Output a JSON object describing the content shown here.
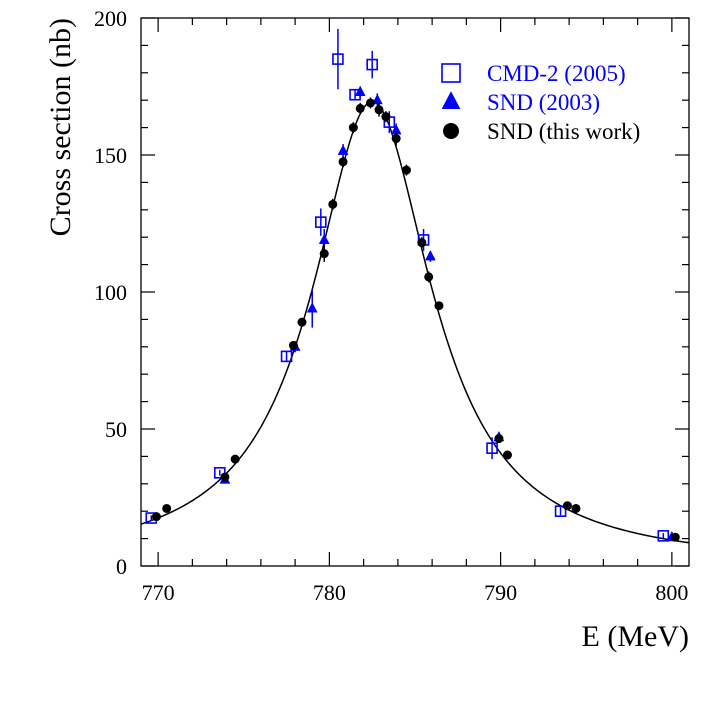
{
  "chart_data": {
    "type": "scatter",
    "title": "",
    "xlabel": "E (MeV)",
    "ylabel": "Cross section (nb)",
    "xlim": [
      769,
      801
    ],
    "ylim": [
      0,
      200
    ],
    "x_ticks": [
      770,
      780,
      790,
      800
    ],
    "y_ticks": [
      0,
      50,
      100,
      150,
      200
    ],
    "grid": false,
    "legend_position": "top-right",
    "series": [
      {
        "name": "CMD-2 (2005)",
        "marker": "open-square",
        "color": "#0000ff",
        "label_color": "#0000ff",
        "points": [
          {
            "x": 769.6,
            "y": 17.5,
            "err": 1.0
          },
          {
            "x": 773.6,
            "y": 34.0,
            "err": 1.0
          },
          {
            "x": 777.5,
            "y": 76.5,
            "err": 2.0
          },
          {
            "x": 779.5,
            "y": 125.5,
            "err": 5.0
          },
          {
            "x": 780.5,
            "y": 185.0,
            "err": 11.0
          },
          {
            "x": 781.5,
            "y": 172.0,
            "err": 2.0
          },
          {
            "x": 782.5,
            "y": 183.0,
            "err": 5.0
          },
          {
            "x": 783.5,
            "y": 162.0,
            "err": 4.0
          },
          {
            "x": 785.5,
            "y": 119.0,
            "err": 4.0
          },
          {
            "x": 789.5,
            "y": 43.0,
            "err": 4.0
          },
          {
            "x": 793.5,
            "y": 20.0,
            "err": 1.5
          },
          {
            "x": 799.5,
            "y": 11.0,
            "err": 1.0
          }
        ]
      },
      {
        "name": "SND (2003)",
        "marker": "filled-triangle",
        "color": "#0000ff",
        "label_color": "#0000ff",
        "points": [
          {
            "x": 773.9,
            "y": 31.5,
            "err": 1.0
          },
          {
            "x": 778.0,
            "y": 80.0,
            "err": 2.0
          },
          {
            "x": 779.0,
            "y": 94.0,
            "err": 7.0
          },
          {
            "x": 779.7,
            "y": 119.0,
            "err": 4.0
          },
          {
            "x": 780.8,
            "y": 151.5,
            "err": 2.5
          },
          {
            "x": 781.8,
            "y": 173.0,
            "err": 2.0
          },
          {
            "x": 782.8,
            "y": 170.0,
            "err": 2.5
          },
          {
            "x": 783.9,
            "y": 159.0,
            "err": 2.5
          },
          {
            "x": 785.9,
            "y": 113.0,
            "err": 2.0
          },
          {
            "x": 789.9,
            "y": 47.0,
            "err": 1.5
          },
          {
            "x": 800.0,
            "y": 10.5,
            "err": 1.0
          }
        ]
      },
      {
        "name": "SND (this work)",
        "marker": "filled-circle",
        "color": "#000000",
        "label_color": "#000000",
        "points": [
          {
            "x": 769.9,
            "y": 18.0,
            "err": 1.0
          },
          {
            "x": 770.5,
            "y": 21.0,
            "err": 1.0
          },
          {
            "x": 773.9,
            "y": 32.5,
            "err": 1.0
          },
          {
            "x": 774.5,
            "y": 39.0,
            "err": 1.0
          },
          {
            "x": 777.9,
            "y": 80.5,
            "err": 1.5
          },
          {
            "x": 778.4,
            "y": 89.0,
            "err": 1.5
          },
          {
            "x": 779.7,
            "y": 114.0,
            "err": 3.0
          },
          {
            "x": 780.2,
            "y": 132.0,
            "err": 2.0
          },
          {
            "x": 780.8,
            "y": 147.5,
            "err": 2.0
          },
          {
            "x": 781.4,
            "y": 160.0,
            "err": 2.0
          },
          {
            "x": 781.8,
            "y": 167.0,
            "err": 2.0
          },
          {
            "x": 782.4,
            "y": 169.0,
            "err": 2.0
          },
          {
            "x": 782.9,
            "y": 166.5,
            "err": 2.5
          },
          {
            "x": 783.3,
            "y": 164.0,
            "err": 2.0
          },
          {
            "x": 783.9,
            "y": 156.0,
            "err": 2.5
          },
          {
            "x": 784.5,
            "y": 144.5,
            "err": 2.0
          },
          {
            "x": 785.4,
            "y": 118.0,
            "err": 2.0
          },
          {
            "x": 785.8,
            "y": 105.5,
            "err": 2.0
          },
          {
            "x": 786.4,
            "y": 95.0,
            "err": 1.5
          },
          {
            "x": 789.9,
            "y": 46.5,
            "err": 1.5
          },
          {
            "x": 790.4,
            "y": 40.5,
            "err": 1.5
          },
          {
            "x": 793.9,
            "y": 22.0,
            "err": 1.0
          },
          {
            "x": 794.4,
            "y": 21.0,
            "err": 1.0
          },
          {
            "x": 800.2,
            "y": 10.5,
            "err": 1.0
          }
        ]
      }
    ],
    "fit_curve": {
      "name": "fit",
      "color": "#000000",
      "model": "breit-wigner",
      "peak_energy": 782.5,
      "width": 8.5,
      "peak_value": 169.5,
      "background": 0.0
    }
  }
}
